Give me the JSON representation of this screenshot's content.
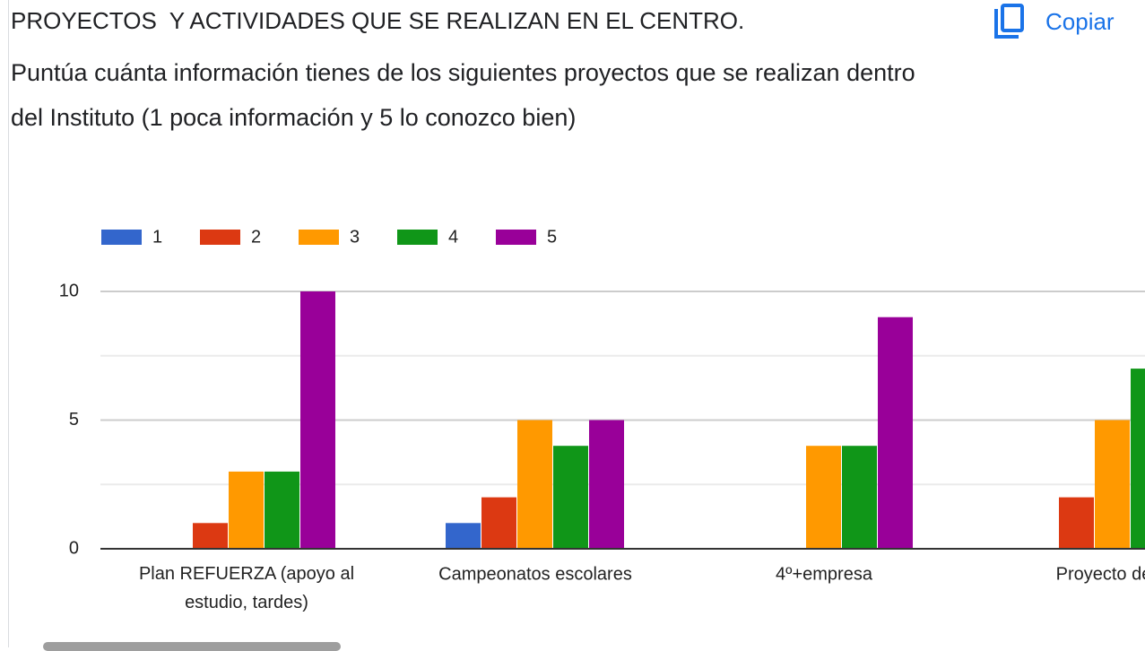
{
  "header": {
    "title": "PROYECTOS  Y ACTIVIDADES QUE SE REALIZAN EN EL CENTRO.",
    "description": "Puntúa cuánta información tienes de los siguientes proyectos que se realizan dentro del Instituto (1 poca información y 5 lo conozco bien)",
    "copy_button": "Copiar"
  },
  "chart_data": {
    "type": "bar",
    "categories": [
      "Plan REFUERZA (apoyo al estudio, tardes)",
      "Campeonatos escolares",
      "4º+empresa",
      "Proyecto de C"
    ],
    "series": [
      {
        "name": "1",
        "color": "#3366cc",
        "values": [
          0,
          1,
          0,
          0
        ]
      },
      {
        "name": "2",
        "color": "#dc3912",
        "values": [
          1,
          2,
          0,
          2
        ]
      },
      {
        "name": "3",
        "color": "#ff9900",
        "values": [
          3,
          5,
          4,
          5
        ]
      },
      {
        "name": "4",
        "color": "#109618",
        "values": [
          3,
          4,
          4,
          7
        ]
      },
      {
        "name": "5",
        "color": "#990099",
        "values": [
          10,
          5,
          9,
          null
        ]
      }
    ],
    "ylim": [
      0,
      10
    ],
    "yticks": [
      0,
      5,
      10
    ],
    "minor_yticks": [
      2.5,
      7.5
    ],
    "grid": true,
    "legend": "top"
  }
}
